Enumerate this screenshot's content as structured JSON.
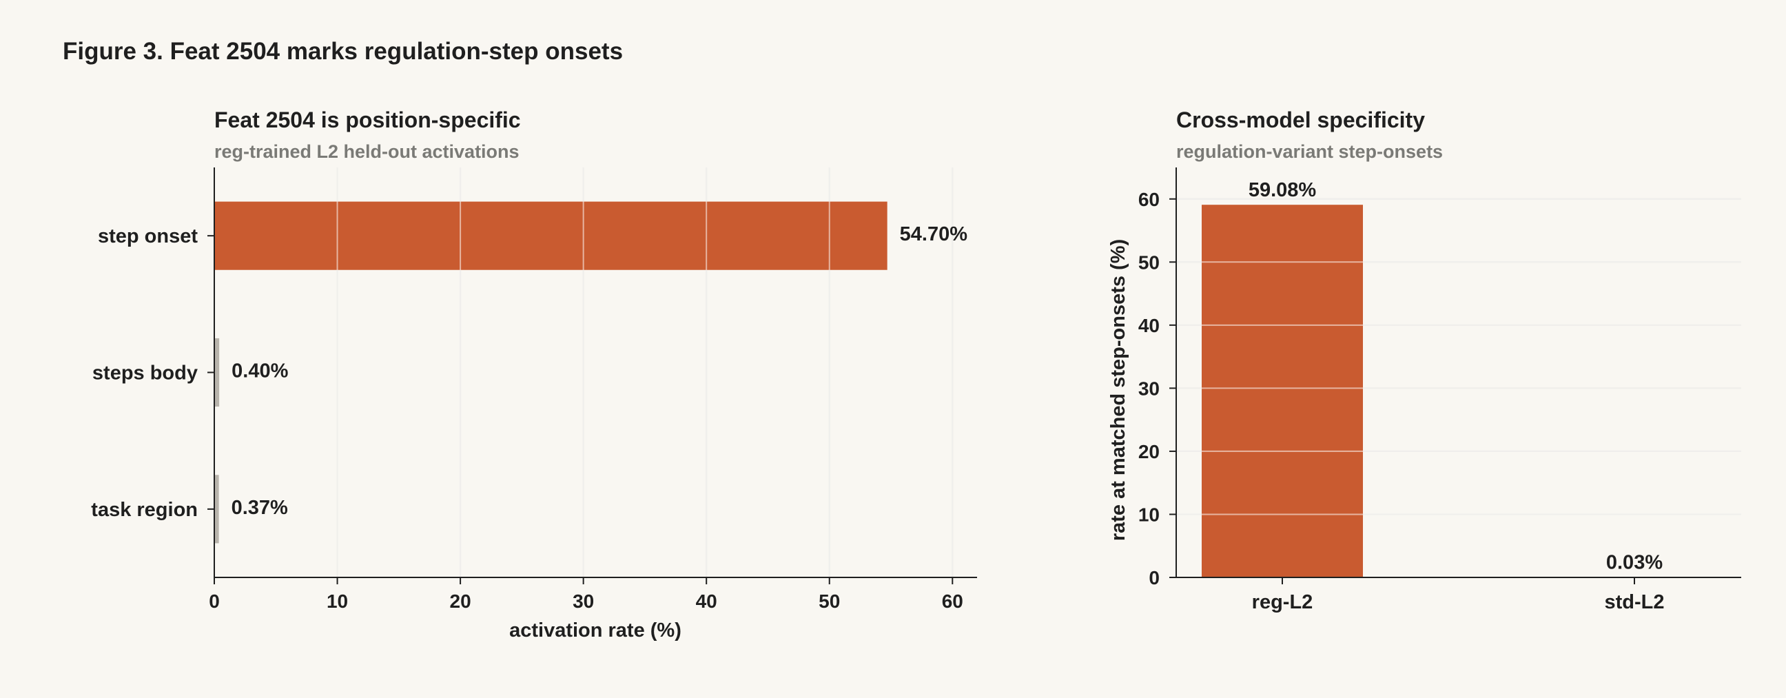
{
  "figure": {
    "title": "Figure 3. Feat 2504 marks regulation-step onsets"
  },
  "colors": {
    "background": "#f9f7f2",
    "accent": "#c95b30",
    "muted_bar": "#b8b4ac",
    "grid": "#dedcd6",
    "axis": "#1f1f1f"
  },
  "chart_data": [
    {
      "type": "bar",
      "orientation": "horizontal",
      "title": "Feat 2504 is position-specific",
      "subtitle": "reg-trained L2 held-out activations",
      "xlabel": "activation rate (%)",
      "ylabel": "",
      "xlim": [
        0,
        62
      ],
      "xticks": [
        0,
        10,
        20,
        30,
        40,
        50,
        60
      ],
      "grid": "vertical",
      "categories": [
        "step onset",
        "steps body",
        "task region"
      ],
      "values": [
        54.7,
        0.4,
        0.37
      ],
      "value_labels": [
        "54.70%",
        "0.40%",
        "0.37%"
      ],
      "bar_colors": [
        "#c95b30",
        "#b8b4ac",
        "#b8b4ac"
      ]
    },
    {
      "type": "bar",
      "orientation": "vertical",
      "title": "Cross-model specificity",
      "subtitle": "regulation-variant step-onsets",
      "xlabel": "",
      "ylabel": "rate at matched step-onsets (%)",
      "ylim": [
        0,
        65
      ],
      "yticks": [
        0,
        10,
        20,
        30,
        40,
        50,
        60
      ],
      "grid": "horizontal",
      "categories": [
        "reg-L2",
        "std-L2"
      ],
      "values": [
        59.08,
        0.03
      ],
      "value_labels": [
        "59.08%",
        "0.03%"
      ],
      "bar_colors": [
        "#c95b30",
        "#b8b4ac"
      ]
    }
  ]
}
